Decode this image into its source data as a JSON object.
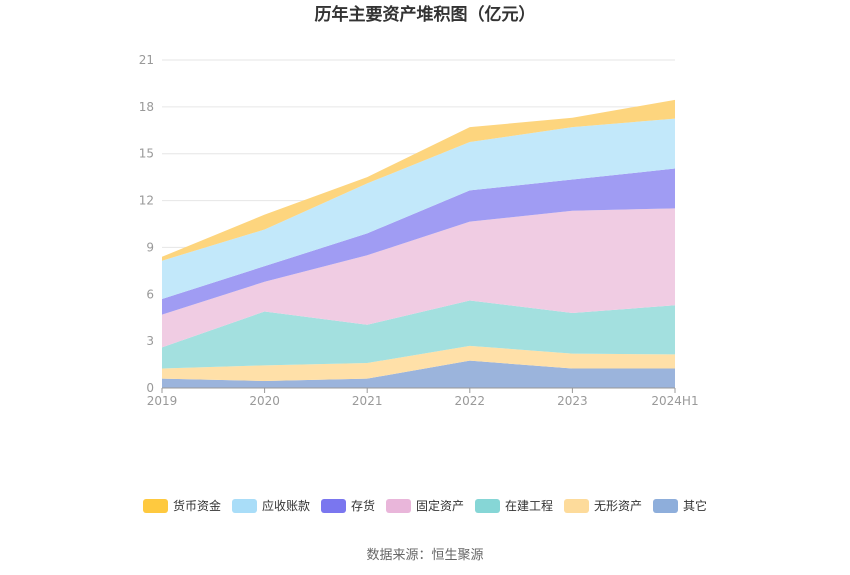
{
  "title": "历年主要资产堆积图（亿元）",
  "source": "数据来源：恒生聚源",
  "chart_data": {
    "type": "area",
    "stacked": true,
    "title": "历年主要资产堆积图（亿元）",
    "categories": [
      "2019",
      "2020",
      "2021",
      "2022",
      "2023",
      "2024H1"
    ],
    "ylim": [
      0,
      21
    ],
    "yticks": [
      0,
      3,
      6,
      9,
      12,
      15,
      18,
      21
    ],
    "grid": true,
    "legend_position": "bottom",
    "series": [
      {
        "name": "其它",
        "color": "#9bb4dc",
        "values": [
          0.6,
          0.45,
          0.6,
          1.75,
          1.25,
          1.25
        ]
      },
      {
        "name": "无形资产",
        "color": "#ffe0a8",
        "values": [
          0.65,
          1.0,
          1.0,
          0.95,
          0.95,
          0.9
        ]
      },
      {
        "name": "在建工程",
        "color": "#a3e0df",
        "values": [
          1.35,
          3.45,
          2.45,
          2.9,
          2.6,
          3.15
        ]
      },
      {
        "name": "固定资产",
        "color": "#f0cce3",
        "values": [
          2.1,
          1.9,
          4.45,
          5.05,
          6.55,
          6.2
        ]
      },
      {
        "name": "存货",
        "color": "#a09cf3",
        "values": [
          1.0,
          1.0,
          1.4,
          2.0,
          2.0,
          2.55
        ]
      },
      {
        "name": "应收账款",
        "color": "#c2e8fa",
        "values": [
          2.45,
          2.35,
          3.2,
          3.1,
          3.35,
          3.2
        ]
      },
      {
        "name": "货币资金",
        "color": "#fdd57e",
        "values": [
          0.25,
          0.95,
          0.4,
          0.95,
          0.6,
          1.2
        ]
      }
    ],
    "legend_order": [
      "货币资金",
      "应收账款",
      "存货",
      "固定资产",
      "在建工程",
      "无形资产",
      "其它"
    ],
    "legend_colors": {
      "货币资金": "#fec93f",
      "应收账款": "#a9ddf8",
      "存货": "#7a76ef",
      "固定资产": "#e9b6da",
      "在建工程": "#86d6d6",
      "无形资产": "#fddb9b",
      "其它": "#8eaedb"
    }
  }
}
